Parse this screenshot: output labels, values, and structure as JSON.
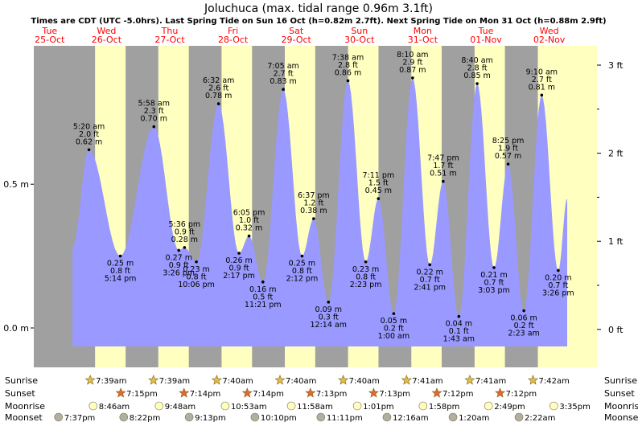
{
  "title": "Joluchuca (max. tidal range 0.96m 3.1ft)",
  "subtitle": "Times are CDT (UTC -5.0hrs). Last Spring Tide on Sun 16 Oct (h=0.82m 2.7ft). Next Spring Tide on Mon 31 Oct (h=0.88m 2.9ft)",
  "chart_data": {
    "type": "area",
    "title": "Joluchuca (max. tidal range 0.96m 3.1ft)",
    "y_left": {
      "unit": "m",
      "ticks": [
        {
          "v": 0.0,
          "label": "0.0 m"
        },
        {
          "v": 0.5,
          "label": "0.5 m"
        }
      ]
    },
    "y_right": {
      "unit": "ft",
      "ticks": [
        {
          "v": 0,
          "label": "0 ft"
        },
        {
          "v": 1,
          "label": "1 ft"
        },
        {
          "v": 2,
          "label": "2 ft"
        },
        {
          "v": 3,
          "label": "3 ft"
        }
      ]
    },
    "ylim_m": [
      -0.15,
      0.97
    ],
    "days": [
      {
        "dow": "Tue",
        "date": "25-Oct"
      },
      {
        "dow": "Wed",
        "date": "26-Oct"
      },
      {
        "dow": "Thu",
        "date": "27-Oct"
      },
      {
        "dow": "Fri",
        "date": "28-Oct"
      },
      {
        "dow": "Sat",
        "date": "29-Oct"
      },
      {
        "dow": "Sun",
        "date": "30-Oct"
      },
      {
        "dow": "Mon",
        "date": "31-Oct"
      },
      {
        "dow": "Tue",
        "date": "01-Nov"
      },
      {
        "dow": "Wed",
        "date": "02-Nov"
      }
    ],
    "tides": [
      {
        "day": 1,
        "time": "5:20 am",
        "h_m": 0.62,
        "h_ft": "2.0 ft",
        "m_text": "0.62 m",
        "type": "high"
      },
      {
        "day": 1,
        "time": "5:14 pm",
        "h_m": 0.25,
        "h_ft": "0.8 ft",
        "m_text": "0.25 m",
        "type": "low"
      },
      {
        "day": 2,
        "time": "5:58 am",
        "h_m": 0.7,
        "h_ft": "2.3 ft",
        "m_text": "0.70 m",
        "type": "high"
      },
      {
        "day": 2,
        "time": "3:26 pm",
        "h_m": 0.27,
        "h_ft": "0.9 ft",
        "m_text": "0.27 m",
        "type": "low"
      },
      {
        "day": 2,
        "time": "5:36 pm",
        "h_m": 0.28,
        "h_ft": "0.9 ft",
        "m_text": "0.28 m",
        "type": "high"
      },
      {
        "day": 2,
        "time": "10:06 pm",
        "h_m": 0.23,
        "h_ft": "0.8 ft",
        "m_text": "0.23 m",
        "type": "low"
      },
      {
        "day": 3,
        "time": "6:32 am",
        "h_m": 0.78,
        "h_ft": "2.6 ft",
        "m_text": "0.78 m",
        "type": "high"
      },
      {
        "day": 3,
        "time": "2:17 pm",
        "h_m": 0.26,
        "h_ft": "0.9 ft",
        "m_text": "0.26 m",
        "type": "low"
      },
      {
        "day": 3,
        "time": "6:05 pm",
        "h_m": 0.32,
        "h_ft": "1.0 ft",
        "m_text": "0.32 m",
        "type": "high"
      },
      {
        "day": 3,
        "time": "11:21 pm",
        "h_m": 0.16,
        "h_ft": "0.5 ft",
        "m_text": "0.16 m",
        "type": "low"
      },
      {
        "day": 4,
        "time": "7:05 am",
        "h_m": 0.83,
        "h_ft": "2.7 ft",
        "m_text": "0.83 m",
        "type": "high"
      },
      {
        "day": 4,
        "time": "2:12 pm",
        "h_m": 0.25,
        "h_ft": "0.8 ft",
        "m_text": "0.25 m",
        "type": "low"
      },
      {
        "day": 4,
        "time": "6:37 pm",
        "h_m": 0.38,
        "h_ft": "1.2 ft",
        "m_text": "0.38 m",
        "type": "high"
      },
      {
        "day": 5,
        "time": "12:14 am",
        "h_m": 0.09,
        "h_ft": "0.3 ft",
        "m_text": "0.09 m",
        "type": "low"
      },
      {
        "day": 5,
        "time": "7:38 am",
        "h_m": 0.86,
        "h_ft": "2.8 ft",
        "m_text": "0.86 m",
        "type": "high"
      },
      {
        "day": 5,
        "time": "2:23 pm",
        "h_m": 0.23,
        "h_ft": "0.8 ft",
        "m_text": "0.23 m",
        "type": "low"
      },
      {
        "day": 5,
        "time": "7:11 pm",
        "h_m": 0.45,
        "h_ft": "1.5 ft",
        "m_text": "0.45 m",
        "type": "high"
      },
      {
        "day": 6,
        "time": "1:00 am",
        "h_m": 0.05,
        "h_ft": "0.2 ft",
        "m_text": "0.05 m",
        "type": "low"
      },
      {
        "day": 6,
        "time": "8:10 am",
        "h_m": 0.87,
        "h_ft": "2.9 ft",
        "m_text": "0.87 m",
        "type": "high"
      },
      {
        "day": 6,
        "time": "2:41 pm",
        "h_m": 0.22,
        "h_ft": "0.7 ft",
        "m_text": "0.22 m",
        "type": "low"
      },
      {
        "day": 6,
        "time": "7:47 pm",
        "h_m": 0.51,
        "h_ft": "1.7 ft",
        "m_text": "0.51 m",
        "type": "high"
      },
      {
        "day": 7,
        "time": "1:43 am",
        "h_m": 0.04,
        "h_ft": "0.1 ft",
        "m_text": "0.04 m",
        "type": "low"
      },
      {
        "day": 7,
        "time": "8:40 am",
        "h_m": 0.85,
        "h_ft": "2.8 ft",
        "m_text": "0.85 m",
        "type": "high"
      },
      {
        "day": 7,
        "time": "3:03 pm",
        "h_m": 0.21,
        "h_ft": "0.7 ft",
        "m_text": "0.21 m",
        "type": "low"
      },
      {
        "day": 7,
        "time": "8:25 pm",
        "h_m": 0.57,
        "h_ft": "1.9 ft",
        "m_text": "0.57 m",
        "type": "high"
      },
      {
        "day": 8,
        "time": "2:23 am",
        "h_m": 0.06,
        "h_ft": "0.2 ft",
        "m_text": "0.06 m",
        "type": "low"
      },
      {
        "day": 8,
        "time": "9:10 am",
        "h_m": 0.81,
        "h_ft": "2.7 ft",
        "m_text": "0.81 m",
        "type": "high"
      },
      {
        "day": 8,
        "time": "3:26 pm",
        "h_m": 0.2,
        "h_ft": "0.7 ft",
        "m_text": "0.20 m",
        "type": "low"
      }
    ],
    "sunrise": [
      {
        "day": 1,
        "time": "7:39am"
      },
      {
        "day": 2,
        "time": "7:39am"
      },
      {
        "day": 3,
        "time": "7:40am"
      },
      {
        "day": 4,
        "time": "7:40am"
      },
      {
        "day": 5,
        "time": "7:40am"
      },
      {
        "day": 6,
        "time": "7:41am"
      },
      {
        "day": 7,
        "time": "7:41am"
      },
      {
        "day": 8,
        "time": "7:42am"
      }
    ],
    "sunset": [
      {
        "day": 1,
        "time": "7:15pm"
      },
      {
        "day": 2,
        "time": "7:14pm"
      },
      {
        "day": 3,
        "time": "7:14pm"
      },
      {
        "day": 4,
        "time": "7:13pm"
      },
      {
        "day": 5,
        "time": "7:13pm"
      },
      {
        "day": 6,
        "time": "7:12pm"
      },
      {
        "day": 7,
        "time": "7:12pm"
      }
    ],
    "moonrise": [
      {
        "day": 1,
        "time": "8:46am"
      },
      {
        "day": 2,
        "time": "9:48am"
      },
      {
        "day": 3,
        "time": "10:53am"
      },
      {
        "day": 4,
        "time": "11:58am"
      },
      {
        "day": 5,
        "time": "1:01pm"
      },
      {
        "day": 6,
        "time": "1:58pm"
      },
      {
        "day": 7,
        "time": "2:49pm"
      },
      {
        "day": 8,
        "time": "3:35pm"
      }
    ],
    "moonset": [
      {
        "day": 0,
        "time": "7:37pm"
      },
      {
        "day": 1,
        "time": "8:22pm"
      },
      {
        "day": 2,
        "time": "9:13pm"
      },
      {
        "day": 3,
        "time": "10:10pm"
      },
      {
        "day": 4,
        "time": "11:11pm"
      },
      {
        "day": 6,
        "time": "12:16am"
      },
      {
        "day": 7,
        "time": "1:20am"
      },
      {
        "day": 8,
        "time": "2:22am"
      }
    ],
    "row_labels": [
      "Sunrise",
      "Sunset",
      "Moonrise",
      "Moonset"
    ],
    "colors": {
      "night": "#a0a0a0",
      "day": "#ffffc0",
      "water": "#9999ff",
      "label": "#ff0000",
      "sun_star": "#e0c040",
      "sunset_star": "#e06a30",
      "moonrise": "#ffffc0",
      "moonset": "#b0b0a0"
    }
  }
}
